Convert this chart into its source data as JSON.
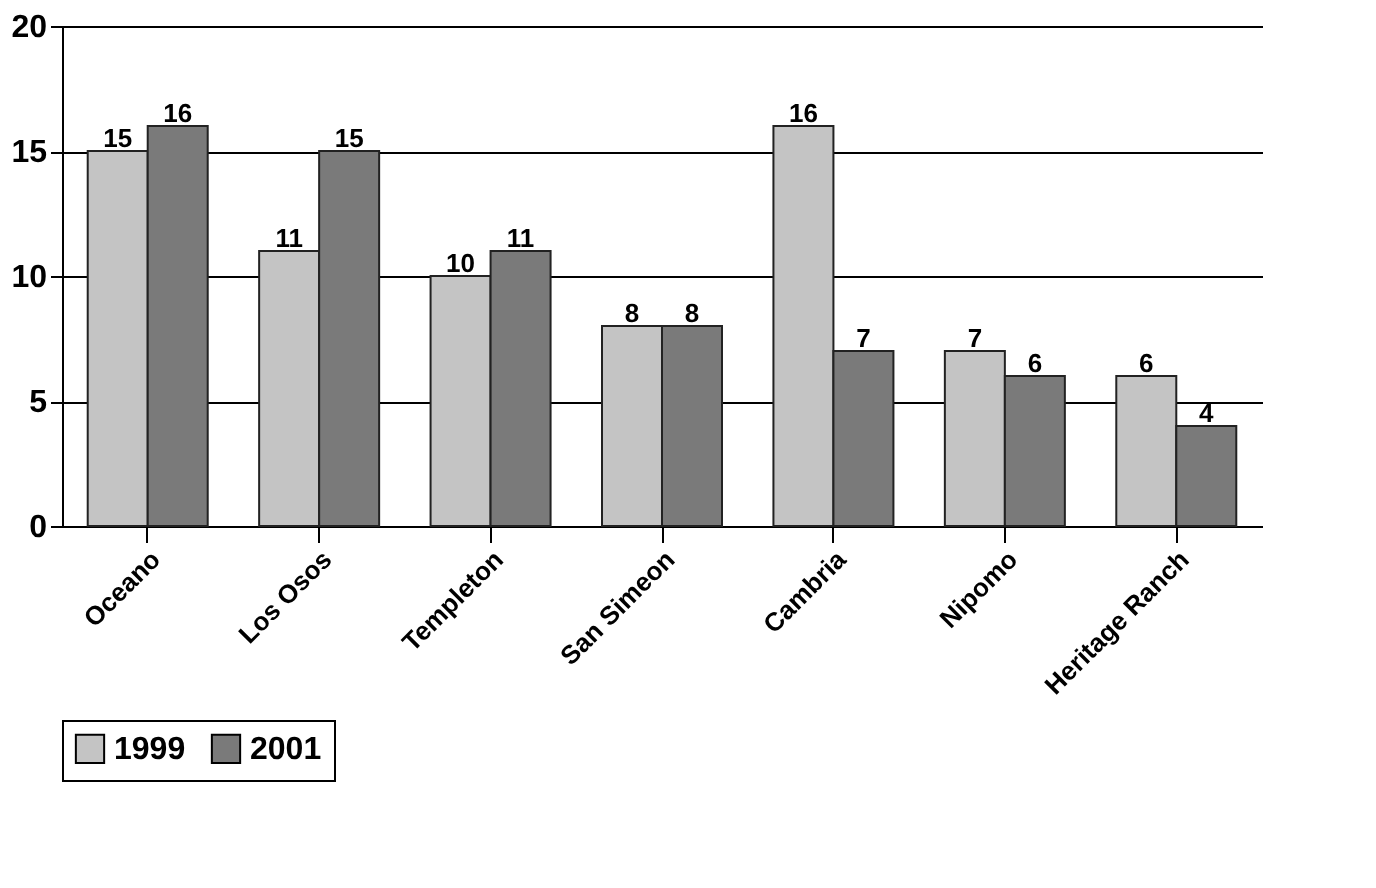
{
  "chart_data": {
    "type": "bar",
    "categories": [
      "Oceano",
      "Los Osos",
      "Templeton",
      "San Simeon",
      "Cambria",
      "Nipomo",
      "Heritage Ranch"
    ],
    "series": [
      {
        "name": "1999",
        "color": "#c4c4c4",
        "values": [
          15,
          11,
          10,
          8,
          16,
          7,
          6
        ]
      },
      {
        "name": "2001",
        "color": "#7a7a7a",
        "values": [
          16,
          15,
          11,
          8,
          7,
          6,
          4
        ]
      }
    ],
    "ylim": [
      0,
      20
    ],
    "yticks": [
      0,
      5,
      10,
      15,
      20
    ],
    "grid": "y",
    "legend": "bottom",
    "data_labels": true
  }
}
